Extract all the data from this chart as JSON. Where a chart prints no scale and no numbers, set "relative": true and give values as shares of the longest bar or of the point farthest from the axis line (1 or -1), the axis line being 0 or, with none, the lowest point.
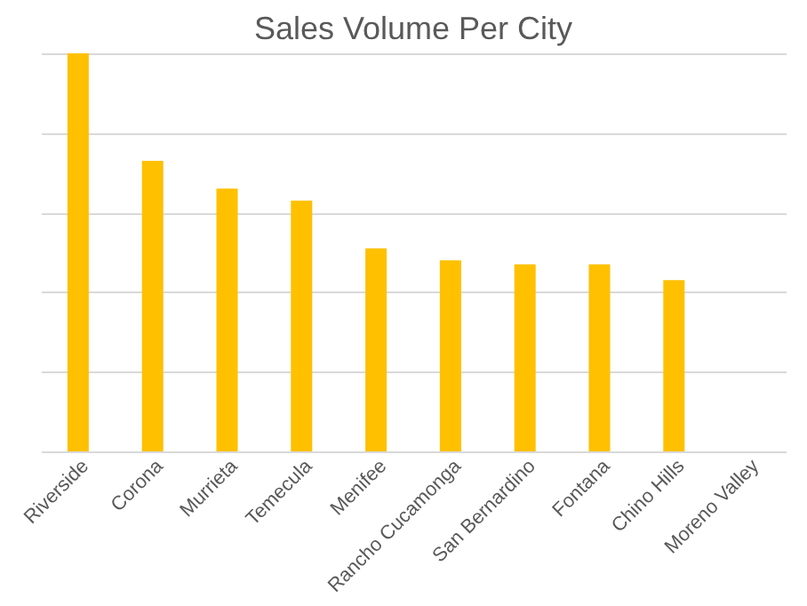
{
  "chart_data": {
    "type": "bar",
    "title": "Sales Volume Per City",
    "relative": true,
    "grid": "y",
    "color": "#ffc000",
    "categories": [
      "Riverside",
      "Corona",
      "Murrieta",
      "Temecula",
      "Menifee",
      "Rancho Cucamonga",
      "San Bernardino",
      "Fontana",
      "Chino Hills",
      "Moreno Valley"
    ],
    "values": [
      1,
      0.73,
      0.66,
      0.63,
      0.51,
      0.48,
      0.47,
      0.47,
      0.43,
      null
    ]
  }
}
